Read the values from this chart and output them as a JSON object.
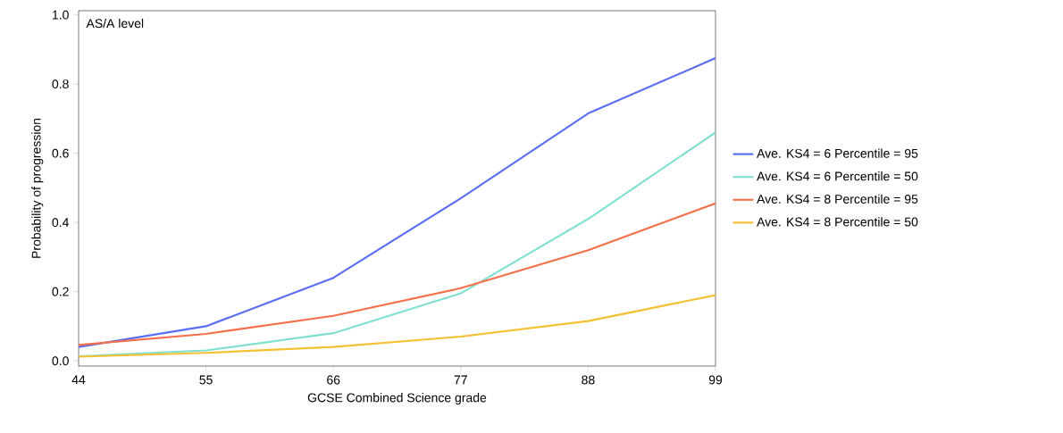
{
  "chart_data": {
    "type": "line",
    "xlabel": "GCSE Combined Science grade",
    "ylabel": "Probability of progression",
    "annotations": [
      "AS/A level"
    ],
    "x": [
      44,
      55,
      66,
      77,
      88,
      99
    ],
    "series": [
      {
        "name": "Ave. KS4 = 6 Percentile = 95",
        "color": "#5a6ef5",
        "values": [
          0.04,
          0.1,
          0.24,
          0.47,
          0.715,
          0.875
        ]
      },
      {
        "name": "Ave. KS4 = 6 Percentile = 50",
        "color": "#80e0d0",
        "values": [
          0.013,
          0.03,
          0.08,
          0.195,
          0.41,
          0.66
        ]
      },
      {
        "name": "Ave. KS4 = 8 Percentile = 95",
        "color": "#f5704a",
        "values": [
          0.046,
          0.078,
          0.13,
          0.21,
          0.32,
          0.455
        ]
      },
      {
        "name": "Ave. KS4 = 8 Percentile = 50",
        "color": "#f5c030",
        "values": [
          0.012,
          0.023,
          0.04,
          0.07,
          0.115,
          0.19
        ]
      }
    ],
    "xlim": [
      44,
      99
    ],
    "ylim": [
      -0.015,
      1.012
    ],
    "xticks": [
      44,
      55,
      66,
      77,
      88,
      99
    ],
    "yticks": [
      {
        "value": 0,
        "label": "0.0"
      },
      {
        "value": 0.2,
        "label": "0.2"
      },
      {
        "value": 0.4,
        "label": "0.4"
      },
      {
        "value": 0.6,
        "label": "0.6"
      },
      {
        "value": 0.8,
        "label": "0.8"
      },
      {
        "value": 1.0,
        "label": "1.0"
      }
    ],
    "grid": false,
    "legend": "right",
    "marker": "none",
    "line_style": "solid"
  }
}
